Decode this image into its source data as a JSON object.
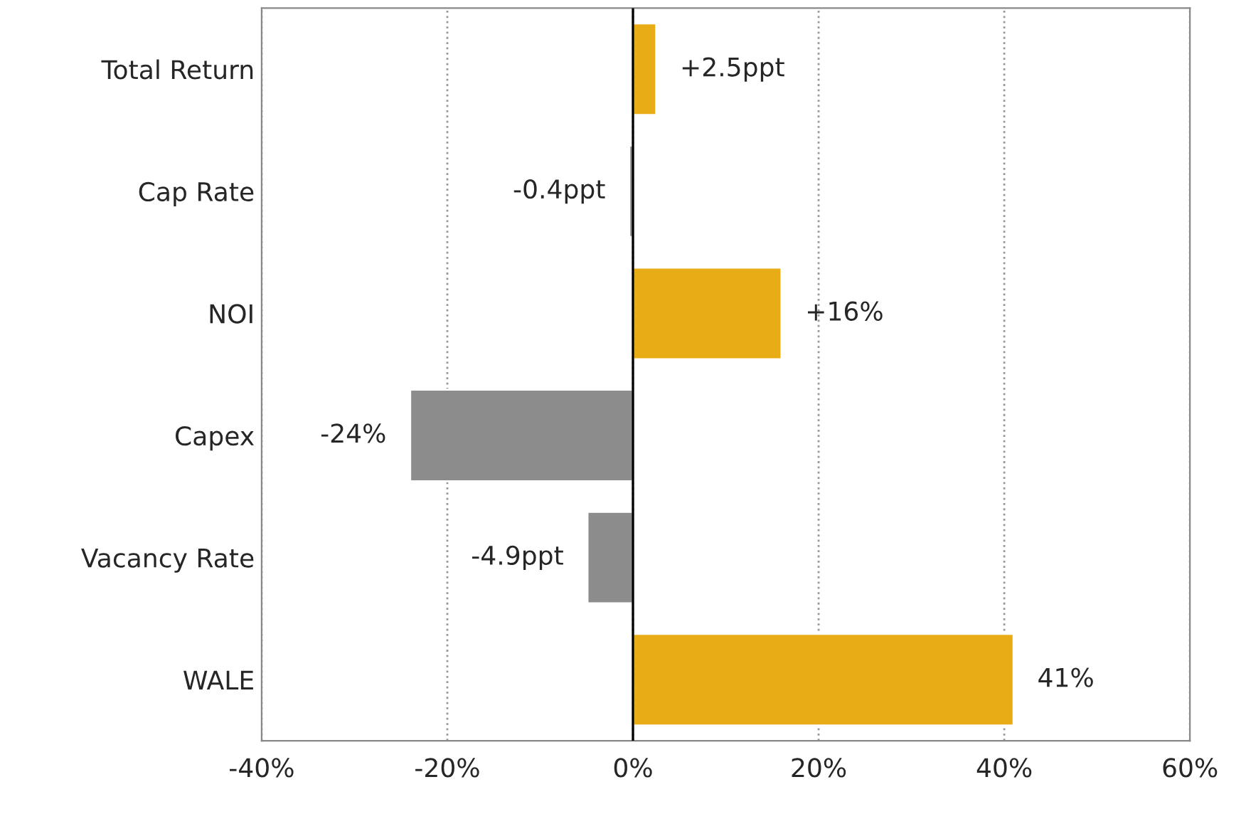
{
  "chart_data": {
    "type": "bar",
    "orientation": "horizontal",
    "categories": [
      "Total Return",
      "Cap Rate",
      "NOI",
      "Capex",
      "Vacancy Rate",
      "WALE"
    ],
    "values": [
      2.5,
      -0.4,
      16,
      -24,
      -4.9,
      41
    ],
    "colors": [
      "#e8ac16",
      "#8c8c8c",
      "#e8ac16",
      "#8c8c8c",
      "#8c8c8c",
      "#e8ac16"
    ],
    "value_labels": [
      "+2.5ppt",
      "-0.4ppt",
      "+16%",
      "-24%",
      "-4.9ppt",
      "41%"
    ],
    "xlim": [
      -40,
      60
    ],
    "xticks": [
      {
        "value": -40,
        "label": "-40%"
      },
      {
        "value": -20,
        "label": "-20%"
      },
      {
        "value": 0,
        "label": "0%"
      },
      {
        "value": 20,
        "label": "20%"
      },
      {
        "value": 40,
        "label": "40%"
      },
      {
        "value": 60,
        "label": "60%"
      }
    ],
    "grid": "x",
    "ref_lines": [
      {
        "axis": "x",
        "value": 0,
        "color": "#000000"
      }
    ]
  }
}
